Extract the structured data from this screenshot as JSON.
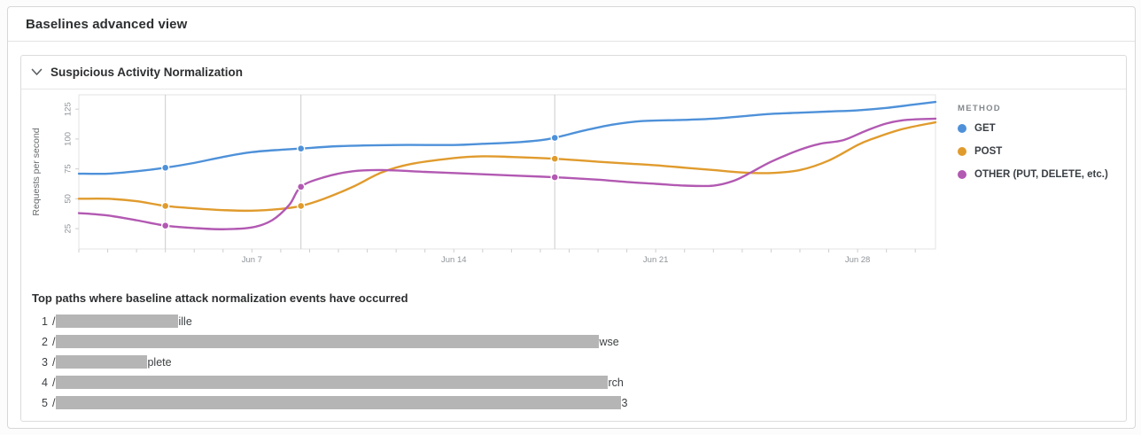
{
  "panel": {
    "title": "Baselines advanced view"
  },
  "section": {
    "title": "Suspicious Activity Normalization"
  },
  "colors": {
    "get": "#4e91d9",
    "post": "#e09b2d",
    "other": "#b259b2",
    "event_line": "#cccccc",
    "plot_border": "#e3e3e3",
    "tick": "#cfcfcf",
    "redaction": "#b5b5b5"
  },
  "chart_data": {
    "type": "line",
    "ylabel": "Requests per second",
    "legend_title": "METHOD",
    "ylim": [
      8,
      137
    ],
    "yticks": [
      25,
      50,
      75,
      100,
      125
    ],
    "x_domain_days_june": [
      1,
      30.7
    ],
    "xticks": [
      {
        "day": 7,
        "label": "Jun 7"
      },
      {
        "day": 14,
        "label": "Jun 14"
      },
      {
        "day": 21,
        "label": "Jun 21"
      },
      {
        "day": 28,
        "label": "Jun 28"
      }
    ],
    "minor_tick_every_days": 1,
    "grid": false,
    "legend_position": "right",
    "event_marker_days": [
      4,
      8.7,
      17.5
    ],
    "series": [
      {
        "name": "GET",
        "color": "#4e91d9",
        "x": [
          1,
          2,
          3,
          4,
          5,
          6,
          7,
          8,
          8.7,
          10,
          12,
          14,
          15,
          16,
          17,
          17.5,
          18.5,
          19.5,
          20.5,
          22,
          23,
          24,
          25,
          26,
          27,
          28,
          29,
          30,
          30.7
        ],
        "y": [
          71,
          71,
          73,
          76,
          80,
          85,
          89,
          91,
          92,
          94,
          95,
          95,
          96,
          97,
          99,
          101,
          107,
          112,
          115,
          116,
          117,
          119,
          121,
          122,
          123,
          124,
          126,
          129,
          131
        ]
      },
      {
        "name": "POST",
        "color": "#e09b2d",
        "x": [
          1,
          2,
          3,
          4,
          5,
          6,
          7,
          8,
          8.7,
          9.5,
          10.5,
          11.5,
          12.5,
          14,
          15,
          16,
          17.5,
          19,
          20,
          21,
          22,
          23,
          24,
          25,
          26,
          27,
          28,
          28.5,
          29.5,
          30.7
        ],
        "y": [
          50,
          50,
          48,
          44,
          42,
          40.5,
          40,
          41.5,
          44,
          50,
          60,
          72,
          79,
          84,
          85.5,
          85,
          83.5,
          81,
          79.5,
          78,
          76,
          74,
          72,
          71.5,
          74,
          82,
          95,
          100,
          108,
          114
        ]
      },
      {
        "name": "OTHER (PUT, DELETE, etc.)",
        "color": "#b259b2",
        "x": [
          1,
          2,
          3,
          4,
          5,
          6,
          7,
          7.7,
          8.3,
          8.7,
          9.5,
          10.5,
          11.5,
          13,
          14,
          16,
          17.5,
          19,
          20,
          21,
          22,
          23,
          23.7,
          24.3,
          25,
          26,
          26.7,
          27.5,
          28.3,
          29,
          29.7,
          30.7
        ],
        "y": [
          38,
          36,
          32,
          27.5,
          25.5,
          24.5,
          26,
          32,
          45,
          60,
          68,
          73,
          74,
          72.5,
          71.5,
          69.5,
          68,
          66,
          64,
          62.5,
          61,
          61,
          65,
          72,
          81,
          91,
          96,
          99,
          107,
          113,
          116,
          117
        ]
      }
    ],
    "event_values": [
      {
        "day": 4,
        "GET": 76,
        "POST": 44,
        "OTHER (PUT, DELETE, etc.)": 27.5
      },
      {
        "day": 8.7,
        "GET": 92,
        "POST": 44,
        "OTHER (PUT, DELETE, etc.)": 60
      },
      {
        "day": 17.5,
        "GET": 101,
        "POST": 83.5,
        "OTHER (PUT, DELETE, etc.)": 68
      }
    ]
  },
  "top_paths": {
    "title": "Top paths where baseline attack normalization events have occurred",
    "rows": [
      {
        "rank": "1",
        "prefix": "/",
        "redacted": true,
        "redaction_width": 138,
        "visible_suffix": "ille"
      },
      {
        "rank": "2",
        "prefix": "/",
        "redacted": true,
        "redaction_width": 613,
        "visible_suffix": "wse"
      },
      {
        "rank": "3",
        "prefix": "/",
        "redacted": true,
        "redaction_width": 103,
        "visible_suffix": "plete"
      },
      {
        "rank": "4",
        "prefix": "/",
        "redacted": true,
        "redaction_width": 623,
        "visible_suffix": "rch"
      },
      {
        "rank": "5",
        "prefix": "/",
        "redacted": true,
        "redaction_width": 638,
        "visible_suffix": "3"
      }
    ]
  }
}
